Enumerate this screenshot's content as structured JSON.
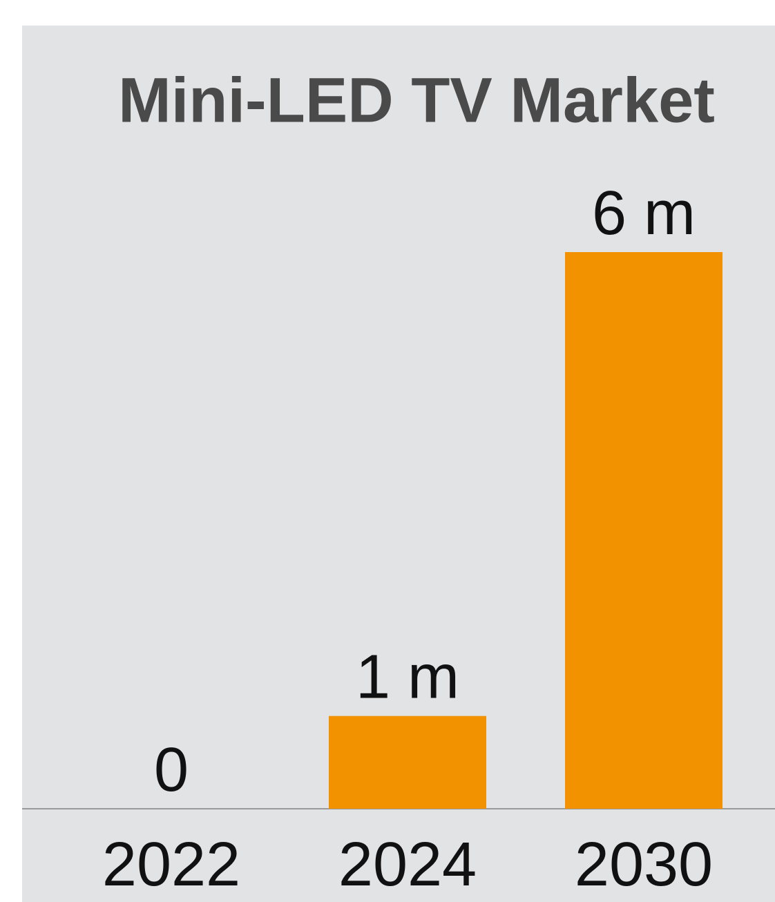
{
  "chart_data": {
    "type": "bar",
    "title": "Mini-LED TV Market",
    "categories": [
      "2022",
      "2024",
      "2030"
    ],
    "values": [
      0,
      1,
      6
    ],
    "value_labels": [
      "0",
      "1 m",
      "6 m"
    ],
    "color": "#f39200"
  }
}
